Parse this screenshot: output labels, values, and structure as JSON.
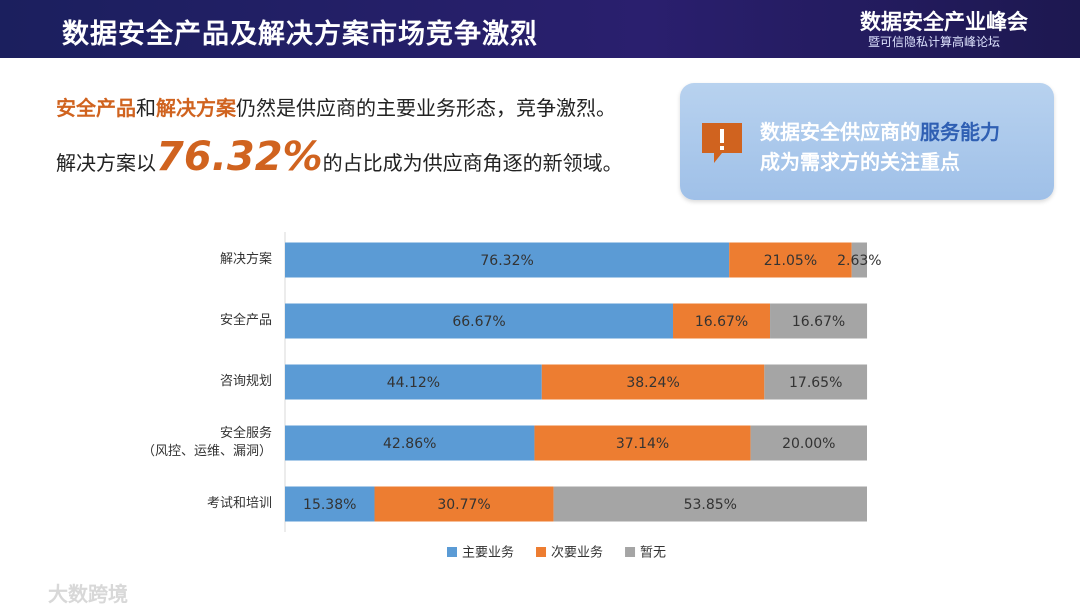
{
  "header": {
    "title": "数据安全产品及解决方案市场竞争激烈",
    "logo_title": "数据安全产业峰会",
    "logo_subtitle": "暨可信隐私计算高峰论坛"
  },
  "headline": {
    "line1": [
      "安全产品",
      "和",
      "解决方案",
      "仍然是供应商的主要业务形态，竞争激烈。"
    ],
    "line2": [
      "解决方案以",
      "76.32%",
      "的占比成为供应商角逐的新领域。"
    ]
  },
  "callout": {
    "line1": [
      "数据安全供应商的",
      "服务能力"
    ],
    "line2": "成为需求方的关注重点"
  },
  "watermark": "大数跨境",
  "chart_data": {
    "type": "bar",
    "orientation": "horizontal",
    "stacked": true,
    "categories": [
      "解决方案",
      "安全产品",
      "咨询规划",
      "安全服务\n（风控、运维、漏洞）",
      "考试和培训"
    ],
    "xlim": [
      0,
      100
    ],
    "legend": "bottom",
    "series": [
      {
        "name": "主要业务",
        "color": "#5b9bd5",
        "values": [
          76.32,
          66.67,
          44.12,
          42.86,
          15.38
        ],
        "value_labels": [
          "76.32%",
          "66.67%",
          "44.12%",
          "42.86%",
          "15.38%"
        ]
      },
      {
        "name": "次要业务",
        "color": "#ed7d31",
        "values": [
          21.05,
          16.67,
          38.24,
          37.14,
          30.77
        ],
        "value_labels": [
          "21.05%",
          "16.67%",
          "38.24%",
          "37.14%",
          "30.77%"
        ]
      },
      {
        "name": "暂无",
        "color": "#a5a5a5",
        "values": [
          2.63,
          16.67,
          17.65,
          20.0,
          53.85
        ],
        "value_labels": [
          "2.63%",
          "16.67%",
          "17.65%",
          "20.00%",
          "53.85%"
        ]
      }
    ]
  }
}
